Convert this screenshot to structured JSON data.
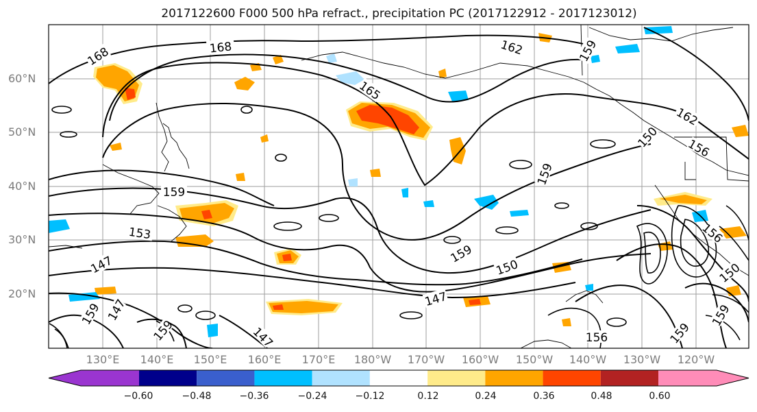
{
  "title": "2017122600 F000 500 hPa refract., precipitation PC (2017122912 - 2017123012)",
  "lat_labels": [
    "60°N",
    "50°N",
    "40°N",
    "30°N",
    "20°N"
  ],
  "lon_labels": [
    "130°E",
    "140°E",
    "150°E",
    "160°E",
    "170°E",
    "180°W",
    "170°W",
    "160°W",
    "150°W",
    "140°W",
    "130°W",
    "120°W"
  ],
  "contour_labels": [
    "168",
    "168",
    "162",
    "159",
    "165",
    "162",
    "156",
    "150",
    "159",
    "159",
    "153",
    "147",
    "159",
    "150",
    "147",
    "147",
    "159",
    "159",
    "156",
    "147",
    "150",
    "159",
    "156",
    "159"
  ],
  "colorbar": {
    "ticks": [
      "−0.60",
      "−0.48",
      "−0.36",
      "−0.24",
      "−0.12",
      "0.12",
      "0.24",
      "0.36",
      "0.48",
      "0.60"
    ],
    "colors": [
      "#9a35d0",
      "#00008b",
      "#3a5fcd",
      "#00bfff",
      "#b0e2ff",
      "#ffffff",
      "#ffeb8a",
      "#ffa500",
      "#ff4500",
      "#b22222",
      "#ff8cb8"
    ]
  },
  "colors": {
    "positive_core": "#ff4500",
    "positive": "#ffa500",
    "positive_light": "#ffeb8a",
    "negative": "#00bfff",
    "negative_light": "#b0e2ff",
    "contour": "#000000",
    "grid": "#9e9e9e"
  }
}
